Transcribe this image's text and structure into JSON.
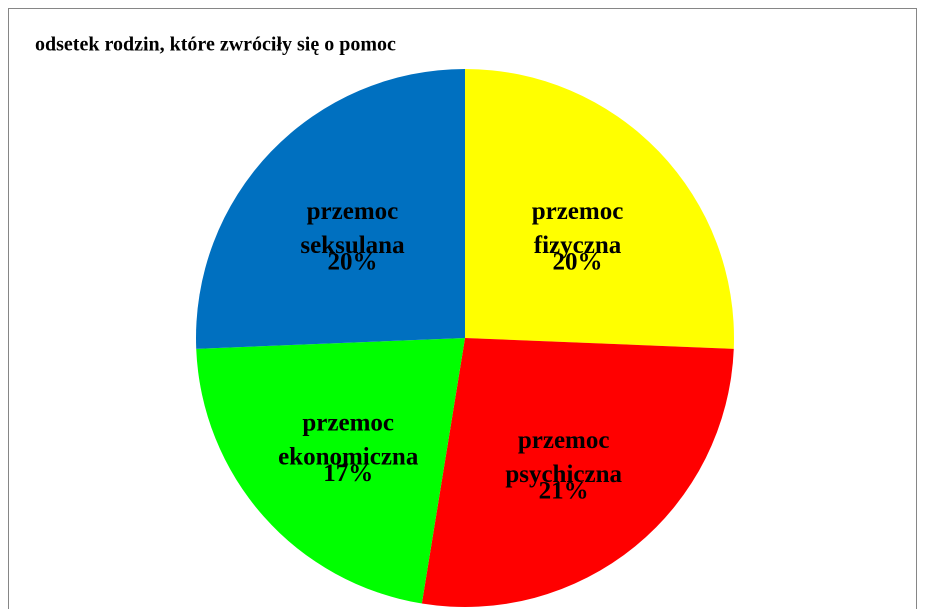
{
  "chart_data": {
    "type": "pie",
    "title": "odsetek rodzin, które zwróciły się o pomoc",
    "categories": [
      "przemoc fizyczna",
      "przemoc psychiczna",
      "przemoc ekonomiczna",
      "przemoc seksulana"
    ],
    "values": [
      20,
      21,
      17,
      20
    ],
    "value_labels": [
      "20%",
      "21%",
      "17%",
      "20%"
    ],
    "colors": [
      "#ffff00",
      "#ff0000",
      "#00ff00",
      "#0070c0"
    ]
  }
}
